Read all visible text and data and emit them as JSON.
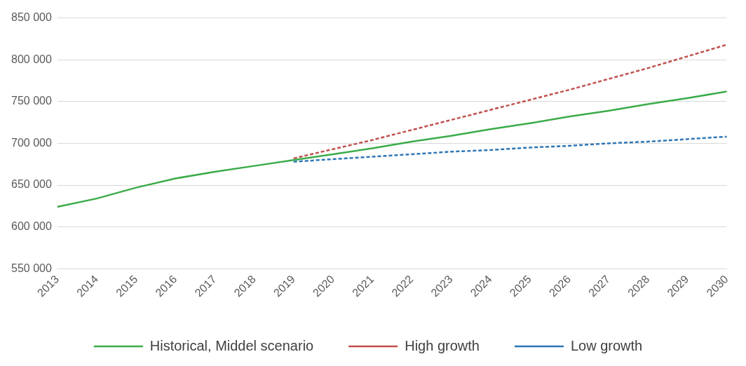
{
  "chart_data": {
    "type": "line",
    "categories": [
      "2013",
      "2014",
      "2015",
      "2016",
      "2017",
      "2018",
      "2019",
      "2020",
      "2021",
      "2022",
      "2023",
      "2024",
      "2025",
      "2026",
      "2027",
      "2028",
      "2029",
      "2030"
    ],
    "series": [
      {
        "name": "Historical, Middel scenario",
        "color": "#3cab4a",
        "line_style": "solid",
        "values": [
          624000,
          634000,
          647000,
          658000,
          666000,
          673000,
          680000,
          687000,
          694000,
          702000,
          709000,
          717000,
          724000,
          732000,
          739000,
          747000,
          754000,
          762000
        ]
      },
      {
        "name": "High growth",
        "color": "#c0504d",
        "line_style": "dashed",
        "values": [
          null,
          null,
          null,
          null,
          null,
          null,
          682000,
          693000,
          704000,
          716000,
          728000,
          740000,
          752000,
          764000,
          777000,
          790000,
          804000,
          818000
        ]
      },
      {
        "name": "Low growth",
        "color": "#2e75b6",
        "line_style": "dashed",
        "values": [
          null,
          null,
          null,
          null,
          null,
          null,
          678000,
          681000,
          684000,
          687000,
          690000,
          692000,
          695000,
          697000,
          700000,
          702000,
          705000,
          708000
        ]
      }
    ],
    "ylim": [
      550000,
      850000
    ],
    "yticks": [
      {
        "value": 550000,
        "label": "550 000"
      },
      {
        "value": 600000,
        "label": "600 000"
      },
      {
        "value": 650000,
        "label": "650 000"
      },
      {
        "value": 700000,
        "label": "700 000"
      },
      {
        "value": 750000,
        "label": "750 000"
      },
      {
        "value": 800000,
        "label": "800 000"
      },
      {
        "value": 850000,
        "label": "850 000"
      }
    ],
    "grid": "y",
    "legend": "bottom",
    "marker": "none"
  }
}
